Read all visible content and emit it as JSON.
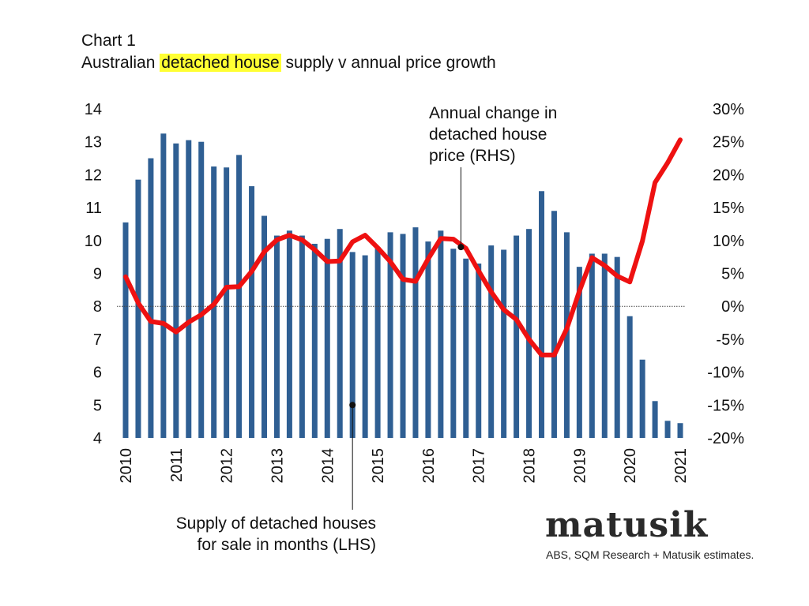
{
  "header": {
    "chart_label": "Chart 1",
    "title_before": "Australian ",
    "title_highlight": "detached house",
    "title_after": " supply v annual price growth",
    "highlight_color": "#ffff33"
  },
  "annotations": {
    "rhs_lines": [
      "Annual change in",
      "detached house",
      "price (RHS)"
    ],
    "lhs_lines": [
      "Supply of detached houses",
      "for sale in months (LHS)"
    ]
  },
  "branding": {
    "logo": "matusik",
    "source": "ABS, SQM Research + Matusik estimates."
  },
  "chart_data": {
    "type": "bar",
    "title": "Australian detached house supply v annual price growth",
    "x_tick_labels": [
      "2010",
      "2011",
      "2012",
      "2013",
      "2014",
      "2015",
      "2016",
      "2017",
      "2018",
      "2019",
      "2020",
      "2021"
    ],
    "left_axis": {
      "ylim": [
        4,
        14
      ],
      "ticks": [
        "4",
        "5",
        "6",
        "7",
        "8",
        "9",
        "10",
        "11",
        "12",
        "13",
        "14"
      ]
    },
    "right_axis": {
      "ylim": [
        -20,
        30
      ],
      "ticks": [
        "-20%",
        "-15%",
        "-10%",
        "-5%",
        "0%",
        "5%",
        "10%",
        "15%",
        "20%",
        "25%",
        "30%"
      ]
    },
    "grid": false,
    "colors": {
      "bars": "#2f5f93",
      "line": "#ee1111",
      "zero_line": "#444444",
      "pointer": "#111111"
    },
    "series": [
      {
        "name": "Supply of detached houses for sale in months (LHS)",
        "type": "bar",
        "axis": "left",
        "x": [
          2010.0,
          2010.25,
          2010.5,
          2010.75,
          2011.0,
          2011.25,
          2011.5,
          2011.75,
          2012.0,
          2012.25,
          2012.5,
          2012.75,
          2013.0,
          2013.25,
          2013.5,
          2013.75,
          2014.0,
          2014.25,
          2014.5,
          2014.75,
          2015.0,
          2015.25,
          2015.5,
          2015.75,
          2016.0,
          2016.25,
          2016.5,
          2016.75,
          2017.0,
          2017.25,
          2017.5,
          2017.75,
          2018.0,
          2018.25,
          2018.5,
          2018.75,
          2019.0,
          2019.25,
          2019.5,
          2019.75,
          2020.0,
          2020.25,
          2020.5,
          2020.75,
          2021.0
        ],
        "values": [
          10.55,
          11.85,
          12.5,
          13.25,
          12.95,
          13.05,
          13.0,
          12.25,
          12.22,
          12.6,
          11.65,
          10.75,
          10.15,
          10.3,
          10.15,
          9.9,
          10.05,
          10.35,
          9.65,
          9.55,
          9.8,
          10.25,
          10.2,
          10.4,
          9.97,
          10.3,
          9.75,
          9.45,
          9.3,
          9.85,
          9.72,
          10.15,
          10.35,
          11.5,
          10.9,
          10.25,
          9.2,
          9.6,
          9.6,
          9.5,
          7.7,
          6.38,
          5.12,
          4.52,
          4.45
        ]
      },
      {
        "name": "Annual change in detached house price (RHS)",
        "type": "line",
        "axis": "right",
        "x": [
          2010.0,
          2010.25,
          2010.5,
          2010.75,
          2011.0,
          2011.25,
          2011.5,
          2011.75,
          2012.0,
          2012.25,
          2012.5,
          2012.75,
          2013.0,
          2013.25,
          2013.5,
          2013.75,
          2014.0,
          2014.25,
          2014.5,
          2014.75,
          2015.0,
          2015.25,
          2015.5,
          2015.75,
          2016.0,
          2016.25,
          2016.5,
          2016.75,
          2017.0,
          2017.25,
          2017.5,
          2017.75,
          2018.0,
          2018.25,
          2018.5,
          2018.75,
          2019.0,
          2019.25,
          2019.5,
          2019.75,
          2020.0,
          2020.25,
          2020.5,
          2020.75,
          2021.0
        ],
        "values": [
          4.5,
          0.5,
          -2.3,
          -2.6,
          -3.9,
          -2.4,
          -1.3,
          0.3,
          2.9,
          3.0,
          5.3,
          8.3,
          10.1,
          10.8,
          10.1,
          8.6,
          6.8,
          6.9,
          9.8,
          10.8,
          8.9,
          6.8,
          4.1,
          3.8,
          7.2,
          10.3,
          10.2,
          8.8,
          5.4,
          2.2,
          -0.5,
          -2.0,
          -5.0,
          -7.4,
          -7.4,
          -3.4,
          2.3,
          7.4,
          6.2,
          4.6,
          3.7,
          9.9,
          18.8,
          21.8,
          25.3
        ]
      }
    ],
    "markers": [
      {
        "series": "Supply of detached houses for sale in months (LHS)",
        "x": 2014.5,
        "y": 5.0
      },
      {
        "series": "Annual change in detached house price (RHS)",
        "x": 2016.65,
        "y": 9.0
      }
    ]
  }
}
